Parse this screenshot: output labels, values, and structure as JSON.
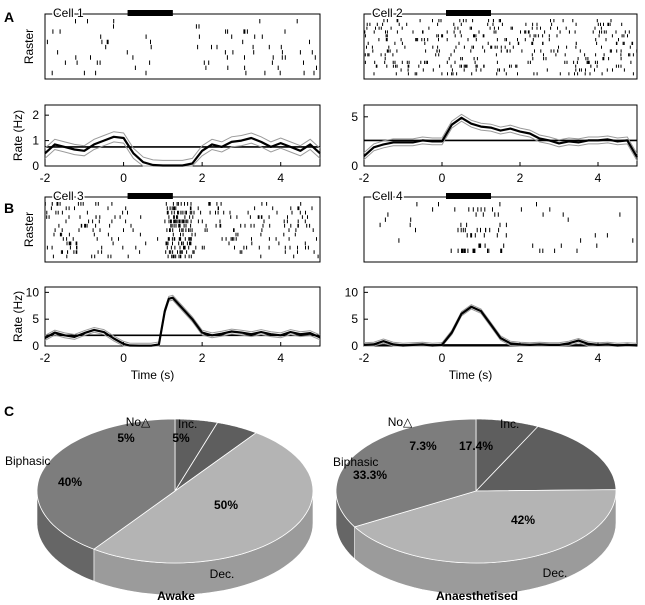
{
  "colors": {
    "ink": "#000000",
    "sem": "#9a9a9a",
    "dark": "#5e5e5e",
    "mid": "#7d7d7d",
    "light": "#b4b4b4",
    "lighter": "#c6c6c6"
  },
  "panel_labels": {
    "a": "A",
    "b": "B",
    "c": "C"
  },
  "chart_data": [
    {
      "type": "line",
      "id": "cell1",
      "title": "Cell 1",
      "row": "A",
      "raster_label": "Raster",
      "ylabel": "Rate (Hz)",
      "xlabel": "",
      "xlim": [
        -2,
        5
      ],
      "ylim": [
        0,
        2.4
      ],
      "xticks": [
        -2,
        0,
        2,
        4
      ],
      "yticks": [
        0,
        1,
        2
      ],
      "baseline": 0.75,
      "stim": [
        0,
        1
      ],
      "raster": {
        "trials": 11,
        "rate_hz": 0.9,
        "silent": [
          0.05,
          1.85
        ],
        "rebound": [
          0,
          0
        ]
      },
      "series": [
        {
          "name": "mean rate",
          "x": [
            -2,
            -1.75,
            -1.5,
            -1.25,
            -1,
            -0.75,
            -0.5,
            -0.25,
            0,
            0.25,
            0.5,
            0.75,
            1,
            1.25,
            1.5,
            1.75,
            2,
            2.25,
            2.5,
            2.75,
            3,
            3.25,
            3.5,
            3.75,
            4,
            4.25,
            4.5,
            4.75,
            5
          ],
          "y": [
            0.5,
            0.85,
            0.75,
            0.65,
            0.6,
            0.85,
            1.0,
            1.15,
            1.1,
            0.5,
            0.15,
            0.04,
            0.02,
            0.02,
            0.02,
            0.1,
            0.6,
            0.85,
            0.75,
            0.95,
            1.0,
            1.1,
            0.95,
            0.75,
            0.9,
            0.75,
            0.6,
            0.85,
            0.5
          ],
          "sem": 0.2
        }
      ]
    },
    {
      "type": "line",
      "id": "cell2",
      "title": "Cell 2",
      "row": "A",
      "raster_label": "",
      "ylabel": "",
      "xlabel": "",
      "xlim": [
        -2,
        5
      ],
      "ylim": [
        0,
        6.2
      ],
      "xticks": [
        -2,
        0,
        2,
        4
      ],
      "yticks": [
        0,
        5
      ],
      "baseline": 2.6,
      "stim": [
        0,
        1
      ],
      "raster": {
        "trials": 15,
        "rate_hz": 2.8,
        "silent": [
          0,
          0
        ],
        "rebound": [
          0,
          0
        ]
      },
      "series": [
        {
          "name": "mean rate",
          "x": [
            -2,
            -1.75,
            -1.5,
            -1.25,
            -1,
            -0.75,
            -0.5,
            -0.25,
            0,
            0.25,
            0.5,
            0.75,
            1,
            1.25,
            1.5,
            1.75,
            2,
            2.25,
            2.5,
            2.75,
            3,
            3.25,
            3.5,
            3.75,
            4,
            4.25,
            4.5,
            4.75,
            5
          ],
          "y": [
            1.0,
            1.9,
            2.2,
            2.4,
            2.4,
            2.4,
            2.6,
            2.5,
            2.5,
            4.2,
            4.9,
            4.3,
            4.0,
            3.9,
            3.6,
            3.8,
            3.5,
            3.3,
            2.8,
            2.6,
            2.3,
            2.5,
            2.4,
            2.6,
            2.6,
            2.7,
            2.5,
            2.6,
            0.9
          ],
          "sem": 0.35
        }
      ]
    },
    {
      "type": "line",
      "id": "cell3",
      "title": "Cell 3",
      "row": "B",
      "raster_label": "Raster",
      "ylabel": "Rate (Hz)",
      "xlabel": "Time (s)",
      "xlim": [
        -2,
        5
      ],
      "ylim": [
        0,
        11
      ],
      "xticks": [
        -2,
        0,
        2,
        4
      ],
      "yticks": [
        0,
        5,
        10
      ],
      "baseline": 2.0,
      "stim": [
        0,
        1
      ],
      "raster": {
        "trials": 13,
        "rate_hz": 2.2,
        "silent": [
          0.05,
          1.05
        ],
        "rebound": [
          1.05,
          1.7
        ]
      },
      "series": [
        {
          "name": "mean rate",
          "x": [
            -2,
            -1.75,
            -1.5,
            -1.25,
            -1,
            -0.75,
            -0.5,
            -0.25,
            0,
            0.15,
            0.4,
            0.7,
            0.9,
            1.05,
            1.15,
            1.25,
            1.5,
            1.75,
            2,
            2.25,
            2.5,
            2.75,
            3,
            3.25,
            3.5,
            3.75,
            4,
            4.25,
            4.5,
            4.75,
            5
          ],
          "y": [
            1.5,
            2.5,
            2.0,
            1.7,
            2.4,
            3.0,
            2.6,
            1.4,
            0.4,
            0.1,
            0.05,
            0.05,
            0.3,
            6.5,
            8.8,
            9.0,
            7.0,
            5.0,
            2.5,
            2.0,
            2.3,
            2.7,
            2.5,
            2.2,
            2.6,
            2.2,
            2.0,
            2.6,
            2.2,
            2.4,
            1.6
          ],
          "sem": 0.45
        }
      ]
    },
    {
      "type": "line",
      "id": "cell4",
      "title": "Cell 4",
      "row": "B",
      "raster_label": "",
      "ylabel": "",
      "xlabel": "Time (s)",
      "xlim": [
        -2,
        5
      ],
      "ylim": [
        0,
        11
      ],
      "xticks": [
        -2,
        0,
        2,
        4
      ],
      "yticks": [
        0,
        5,
        10
      ],
      "baseline": 0.2,
      "stim": [
        0,
        1
      ],
      "raster": {
        "trials": 11,
        "rate_hz": 0.35,
        "silent": [
          0,
          0
        ],
        "rebound": [
          0.2,
          1.4
        ]
      },
      "series": [
        {
          "name": "mean rate",
          "x": [
            -2,
            -1.75,
            -1.5,
            -1.25,
            -1,
            -0.75,
            -0.5,
            -0.25,
            0,
            0.25,
            0.5,
            0.75,
            1,
            1.25,
            1.5,
            1.75,
            2,
            2.25,
            2.5,
            2.75,
            3,
            3.25,
            3.5,
            3.75,
            4,
            4.25,
            4.5,
            4.75,
            5
          ],
          "y": [
            0.2,
            0.3,
            0.9,
            0.3,
            0.1,
            0.2,
            0.3,
            0.1,
            0.2,
            2.5,
            6.0,
            7.3,
            6.5,
            4.0,
            1.5,
            0.5,
            0.3,
            0.2,
            0.3,
            0.2,
            0.2,
            0.5,
            1.0,
            0.4,
            0.2,
            0.3,
            0.1,
            0.2,
            0.1
          ],
          "sem": 0.4
        }
      ]
    },
    {
      "type": "pie",
      "id": "awake",
      "title": "Awake",
      "categories": [
        "No△",
        "Inc.",
        "Dec.",
        "Biphasic"
      ],
      "values": [
        5,
        5,
        50,
        40
      ],
      "value_labels": [
        "5%",
        "5%",
        "50%",
        "40%"
      ]
    },
    {
      "type": "pie",
      "id": "anaesthetised",
      "title": "Anaesthetised",
      "categories": [
        "No△",
        "Inc.",
        "Dec.",
        "Biphasic"
      ],
      "values": [
        7.3,
        17.4,
        42,
        33.3
      ],
      "value_labels": [
        "7.3%",
        "17.4%",
        "42%",
        "33.3%"
      ]
    }
  ]
}
